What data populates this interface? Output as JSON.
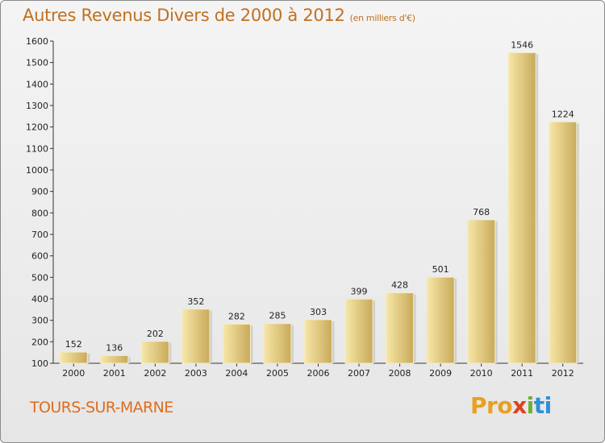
{
  "title": "Autres Revenus Divers de 2000 à 2012",
  "unit": "(en milliers d'€)",
  "location": "TOURS-SUR-MARNE",
  "logo": {
    "p1": "Pro",
    "p2": "x",
    "p3": "i",
    "p4": "ti"
  },
  "colors": {
    "title": "#c07020",
    "bar": "#e8cf86",
    "bar_dark": "#c8aa5a",
    "location": "#e06c1c"
  },
  "chart_data": {
    "type": "bar",
    "title": "Autres Revenus Divers de 2000 à 2012",
    "subtitle": "(en milliers d'€)",
    "categories": [
      "2000",
      "2001",
      "2002",
      "2003",
      "2004",
      "2005",
      "2006",
      "2007",
      "2008",
      "2009",
      "2010",
      "2011",
      "2012"
    ],
    "values": [
      152,
      136,
      202,
      352,
      282,
      285,
      303,
      399,
      428,
      501,
      768,
      1546,
      1224
    ],
    "yticks": [
      100,
      200,
      300,
      400,
      500,
      600,
      700,
      800,
      900,
      1000,
      1100,
      1200,
      1300,
      1400,
      1500,
      1600
    ],
    "ylim": [
      100,
      1600
    ],
    "grid": false,
    "xlabel": "",
    "ylabel": ""
  }
}
